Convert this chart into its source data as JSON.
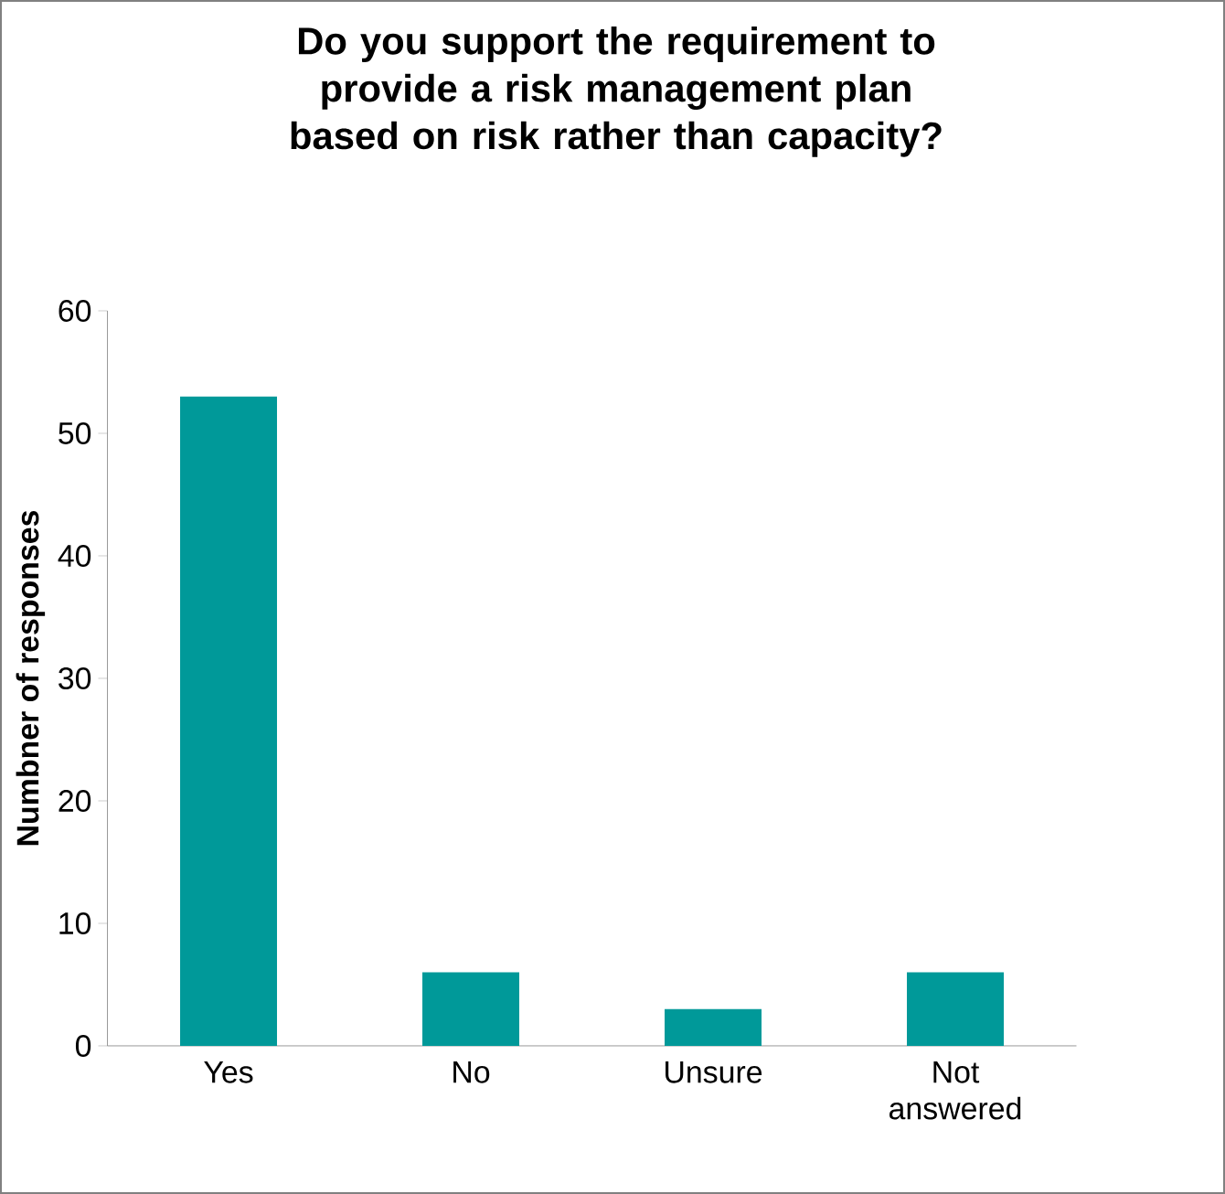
{
  "chart_data": {
    "type": "bar",
    "title": "Do you support the requirement to provide a risk management plan based on risk rather than capacity?",
    "ylabel": "Numbner of responses",
    "categories": [
      "Yes",
      "No",
      "Unsure",
      "Not answered"
    ],
    "values": [
      53,
      6,
      3,
      6
    ],
    "color": "#009999",
    "ylim": [
      0,
      60
    ],
    "yticks": [
      0,
      10,
      20,
      30,
      40,
      50,
      60
    ]
  }
}
